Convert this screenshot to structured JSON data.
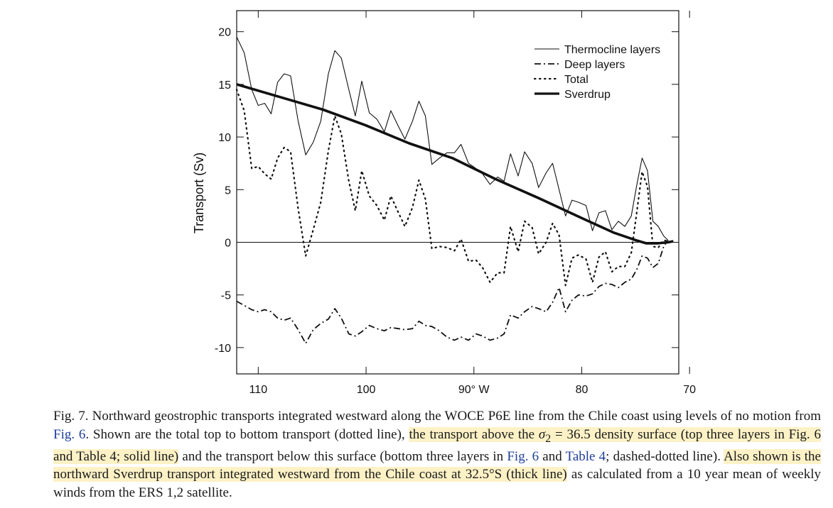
{
  "chart_data": {
    "type": "line",
    "ylabel": "Transport (Sv)",
    "xlabel": "",
    "xlim": [
      112,
      71
    ],
    "ylim": [
      -12.5,
      22
    ],
    "x_ticks": [
      110,
      100,
      90,
      80,
      70
    ],
    "x_tick_labels": [
      "110",
      "100",
      "90° W",
      "80",
      "70"
    ],
    "y_ticks": [
      20,
      15,
      10,
      5,
      0,
      -5,
      -10
    ],
    "y_tick_labels": [
      "20",
      "15",
      "10",
      "5",
      "0",
      "-5",
      "-10"
    ],
    "zero_line": true,
    "legend": {
      "placement": "top-right",
      "entries": [
        "Thermocline layers",
        "Deep layers",
        "Total",
        "Sverdrup"
      ]
    },
    "series": [
      {
        "name": "Thermocline layers",
        "style": "solid-thin",
        "points": [
          [
            112,
            19.5
          ],
          [
            111.3,
            18
          ],
          [
            110.6,
            14.5
          ],
          [
            110,
            13
          ],
          [
            109.4,
            13.2
          ],
          [
            108.8,
            12.2
          ],
          [
            108.2,
            15.2
          ],
          [
            107.6,
            16
          ],
          [
            107,
            15.8
          ],
          [
            106.3,
            11.5
          ],
          [
            105.6,
            8.3
          ],
          [
            104.9,
            9.5
          ],
          [
            104.2,
            11.5
          ],
          [
            103.5,
            16
          ],
          [
            102.9,
            18.2
          ],
          [
            102.3,
            17.5
          ],
          [
            101.6,
            14.5
          ],
          [
            101,
            12
          ],
          [
            100.4,
            15.3
          ],
          [
            99.7,
            12.3
          ],
          [
            99,
            11.7
          ],
          [
            98.3,
            10.5
          ],
          [
            97.7,
            12.5
          ],
          [
            97,
            11
          ],
          [
            96.4,
            9.8
          ],
          [
            95.7,
            11.5
          ],
          [
            95.1,
            13.4
          ],
          [
            94.5,
            12
          ],
          [
            93.9,
            7.4
          ],
          [
            93.2,
            8
          ],
          [
            92.5,
            8.5
          ],
          [
            91.8,
            8.5
          ],
          [
            91.2,
            9.3
          ],
          [
            90.5,
            7.5
          ],
          [
            89.8,
            7
          ],
          [
            89.2,
            6.5
          ],
          [
            88.5,
            5.5
          ],
          [
            87.8,
            6.2
          ],
          [
            87.2,
            5.8
          ],
          [
            86.6,
            8.4
          ],
          [
            85.9,
            6.3
          ],
          [
            85.3,
            8.6
          ],
          [
            84.6,
            7.5
          ],
          [
            84,
            5.2
          ],
          [
            83.3,
            6.6
          ],
          [
            82.7,
            7.5
          ],
          [
            82.1,
            5
          ],
          [
            81.5,
            2.5
          ],
          [
            80.9,
            4
          ],
          [
            80.3,
            3.8
          ],
          [
            79.6,
            3.5
          ],
          [
            79,
            1.1
          ],
          [
            78.4,
            2.8
          ],
          [
            77.8,
            3
          ],
          [
            77.2,
            1.2
          ],
          [
            76.6,
            2
          ],
          [
            76,
            1.5
          ],
          [
            75.4,
            2.5
          ],
          [
            74.9,
            5.4
          ],
          [
            74.4,
            8
          ],
          [
            73.9,
            6.8
          ],
          [
            73.4,
            2
          ],
          [
            72.9,
            1.5
          ],
          [
            72.4,
            0.6
          ],
          [
            72,
            0.2
          ]
        ]
      },
      {
        "name": "Deep layers",
        "style": "dash-dot",
        "points": [
          [
            112,
            -5.6
          ],
          [
            111.3,
            -6
          ],
          [
            110.6,
            -6.4
          ],
          [
            110,
            -6.6
          ],
          [
            109.4,
            -6.4
          ],
          [
            108.8,
            -6.6
          ],
          [
            108.2,
            -7.2
          ],
          [
            107.6,
            -7.4
          ],
          [
            107,
            -7.2
          ],
          [
            106.3,
            -8.3
          ],
          [
            105.6,
            -9.6
          ],
          [
            104.9,
            -8.3
          ],
          [
            104.2,
            -7.7
          ],
          [
            103.5,
            -7.3
          ],
          [
            102.9,
            -6.3
          ],
          [
            102.3,
            -7.2
          ],
          [
            101.6,
            -8.7
          ],
          [
            101,
            -8.9
          ],
          [
            100.4,
            -8.5
          ],
          [
            99.7,
            -7.9
          ],
          [
            99,
            -8.2
          ],
          [
            98.3,
            -8.4
          ],
          [
            97.7,
            -8.1
          ],
          [
            97,
            -8.2
          ],
          [
            96.4,
            -8.3
          ],
          [
            95.7,
            -8.2
          ],
          [
            95.1,
            -7.5
          ],
          [
            94.5,
            -7.9
          ],
          [
            93.9,
            -8
          ],
          [
            93.2,
            -8.4
          ],
          [
            92.5,
            -9
          ],
          [
            91.8,
            -9.3
          ],
          [
            91.2,
            -9
          ],
          [
            90.5,
            -9.3
          ],
          [
            89.8,
            -8.7
          ],
          [
            89.2,
            -8.9
          ],
          [
            88.5,
            -9.3
          ],
          [
            87.8,
            -9.1
          ],
          [
            87.2,
            -8.7
          ],
          [
            86.6,
            -6.9
          ],
          [
            85.9,
            -7.2
          ],
          [
            85.3,
            -6.6
          ],
          [
            84.6,
            -6.1
          ],
          [
            84,
            -6.3
          ],
          [
            83.3,
            -6.6
          ],
          [
            82.7,
            -5.7
          ],
          [
            82.1,
            -4.3
          ],
          [
            81.5,
            -6.6
          ],
          [
            80.9,
            -5.5
          ],
          [
            80.3,
            -5
          ],
          [
            79.6,
            -5.1
          ],
          [
            79,
            -4.9
          ],
          [
            78.4,
            -4.2
          ],
          [
            77.8,
            -3.9
          ],
          [
            77.2,
            -4
          ],
          [
            76.6,
            -4.3
          ],
          [
            76,
            -3.8
          ],
          [
            75.4,
            -3.5
          ],
          [
            74.9,
            -2.6
          ],
          [
            74.4,
            -1.3
          ],
          [
            73.9,
            -1.5
          ],
          [
            73.4,
            -2.4
          ],
          [
            72.9,
            -2
          ],
          [
            72.4,
            -0.4
          ],
          [
            72,
            0.2
          ]
        ]
      },
      {
        "name": "Total",
        "style": "dotted",
        "points": [
          [
            112,
            14.5
          ],
          [
            111.3,
            12.5
          ],
          [
            110.6,
            7
          ],
          [
            110,
            7.2
          ],
          [
            109.4,
            6.5
          ],
          [
            108.8,
            6
          ],
          [
            108.2,
            8
          ],
          [
            107.6,
            9
          ],
          [
            107,
            8.6
          ],
          [
            106.3,
            3.2
          ],
          [
            105.6,
            -1.3
          ],
          [
            104.9,
            1.2
          ],
          [
            104.2,
            3.8
          ],
          [
            103.5,
            8.7
          ],
          [
            102.9,
            12
          ],
          [
            102.3,
            10.3
          ],
          [
            101.6,
            5.8
          ],
          [
            101,
            3
          ],
          [
            100.4,
            6.8
          ],
          [
            99.7,
            4.4
          ],
          [
            99,
            3.5
          ],
          [
            98.3,
            2.1
          ],
          [
            97.7,
            4.4
          ],
          [
            97,
            2.8
          ],
          [
            96.4,
            1.5
          ],
          [
            95.7,
            3.3
          ],
          [
            95.1,
            5.9
          ],
          [
            94.5,
            4.1
          ],
          [
            93.9,
            -0.6
          ],
          [
            93.2,
            -0.4
          ],
          [
            92.5,
            -0.5
          ],
          [
            91.8,
            -0.8
          ],
          [
            91.2,
            0.3
          ],
          [
            90.5,
            -1.8
          ],
          [
            89.8,
            -1.7
          ],
          [
            89.2,
            -2.4
          ],
          [
            88.5,
            -3.8
          ],
          [
            87.8,
            -2.9
          ],
          [
            87.2,
            -2.9
          ],
          [
            86.6,
            1.5
          ],
          [
            85.9,
            -0.9
          ],
          [
            85.3,
            2
          ],
          [
            84.6,
            1.4
          ],
          [
            84,
            -1.1
          ],
          [
            83.3,
            0
          ],
          [
            82.7,
            1.8
          ],
          [
            82.1,
            0.7
          ],
          [
            81.5,
            -4.1
          ],
          [
            80.9,
            -1.5
          ],
          [
            80.3,
            -1.2
          ],
          [
            79.6,
            -1.6
          ],
          [
            79,
            -3.8
          ],
          [
            78.4,
            -1.4
          ],
          [
            77.8,
            -0.9
          ],
          [
            77.2,
            -2.8
          ],
          [
            76.6,
            -2.3
          ],
          [
            76,
            -2.3
          ],
          [
            75.4,
            -1
          ],
          [
            74.9,
            2.8
          ],
          [
            74.4,
            6.7
          ],
          [
            73.9,
            5.3
          ],
          [
            73.4,
            -0.4
          ],
          [
            72.9,
            -0.5
          ],
          [
            72.4,
            0.2
          ],
          [
            72,
            0.1
          ]
        ]
      },
      {
        "name": "Sverdrup",
        "style": "solid-thick",
        "points": [
          [
            112,
            15
          ],
          [
            108,
            13.8
          ],
          [
            104,
            12.6
          ],
          [
            100,
            11.1
          ],
          [
            96,
            9.4
          ],
          [
            92,
            8
          ],
          [
            88,
            6
          ],
          [
            84,
            4.2
          ],
          [
            80,
            2.3
          ],
          [
            77,
            0.9
          ],
          [
            75,
            0.2
          ],
          [
            74,
            -0.1
          ],
          [
            73,
            -0.1
          ],
          [
            72,
            0
          ],
          [
            71.5,
            0.1
          ]
        ]
      }
    ]
  },
  "caption": {
    "fig_label": "Fig. 7.",
    "s1": " Northward geostrophic transports integrated westward along the WOCE P6E line from the Chile coast using levels of no motion from ",
    "ref_fig6_a": "Fig. 6",
    "s2": ". Shown are the total top to bottom transport (dotted line), ",
    "h1": "the transport above the ",
    "sigma": "σ",
    "sigma_sub": "2",
    "h2": " = 36.5 density surface (top three layers in Fig. 6 and Table 4; solid line)",
    "s3": " and the transport below this surface (bottom three layers in ",
    "ref_fig6_b": "Fig. 6",
    "s4": " and ",
    "ref_table4": "Table 4",
    "s5": "; dashed-dotted line). ",
    "h3": "Also shown is the northward Sverdrup transport integrated westward from the Chile coast at 32.5°S (thick line)",
    "s6": " as calculated from a 10 year mean of weekly winds from the ERS 1,2 satellite."
  }
}
